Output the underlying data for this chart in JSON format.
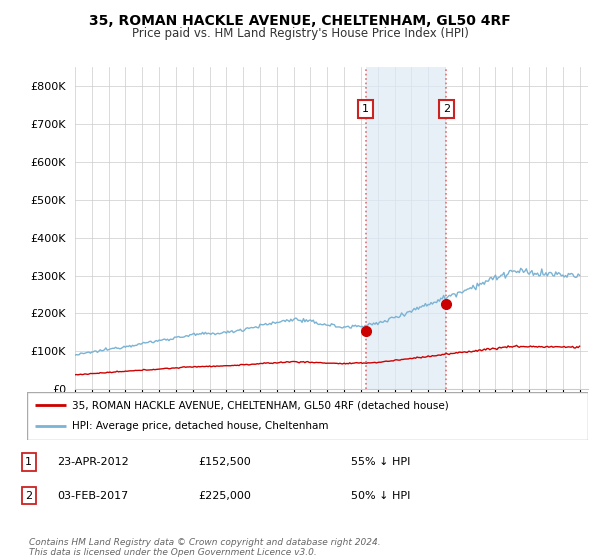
{
  "title": "35, ROMAN HACKLE AVENUE, CHELTENHAM, GL50 4RF",
  "subtitle": "Price paid vs. HM Land Registry's House Price Index (HPI)",
  "ylim": [
    0,
    850000
  ],
  "yticks": [
    0,
    100000,
    200000,
    300000,
    400000,
    500000,
    600000,
    700000,
    800000
  ],
  "xlim": [
    1995,
    2025.5
  ],
  "hpi_color": "#7ab3d4",
  "price_color": "#cc0000",
  "sale1_date": "23-APR-2012",
  "sale1_price": 152500,
  "sale1_pct": "55% ↓ HPI",
  "sale2_date": "03-FEB-2017",
  "sale2_price": 225000,
  "sale2_pct": "50% ↓ HPI",
  "legend_label1": "35, ROMAN HACKLE AVENUE, CHELTENHAM, GL50 4RF (detached house)",
  "legend_label2": "HPI: Average price, detached house, Cheltenham",
  "footer": "Contains HM Land Registry data © Crown copyright and database right 2024.\nThis data is licensed under the Open Government Licence v3.0.",
  "sale1_x": 2012.29,
  "sale2_x": 2017.08,
  "shade_color": "#ddeaf5",
  "vline_color": "#e06060",
  "annotation_box_color": "#cc2222"
}
